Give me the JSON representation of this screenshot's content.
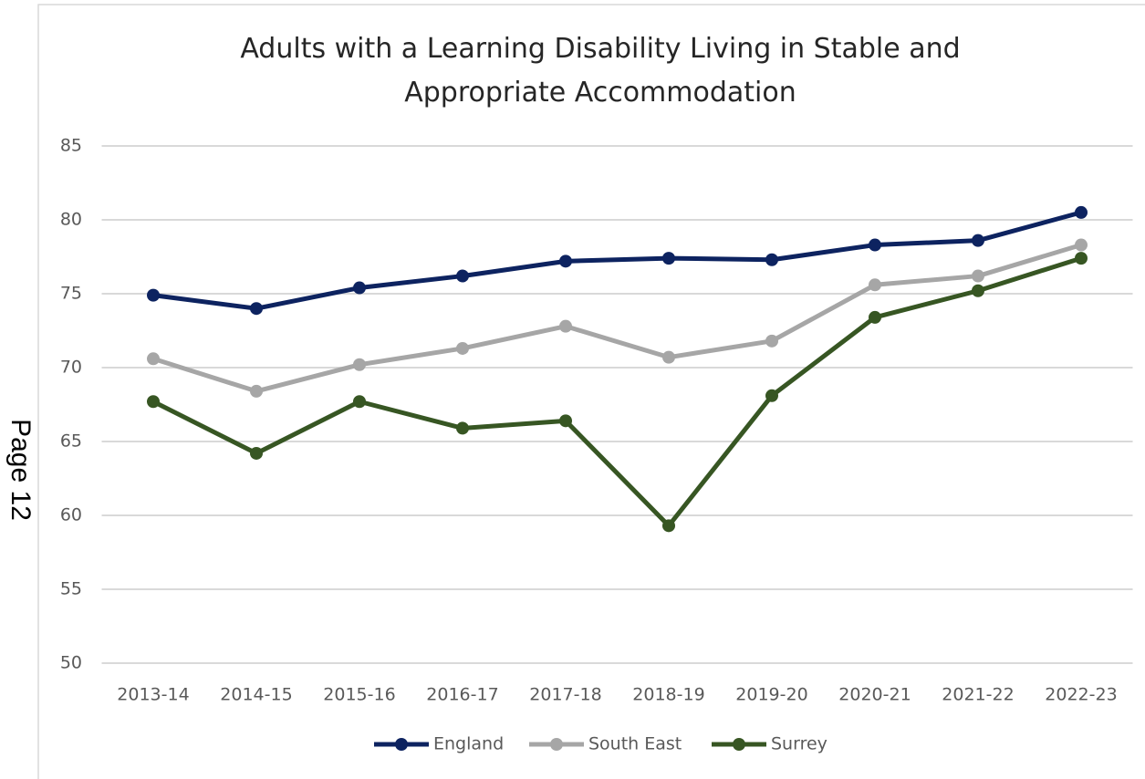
{
  "page_label": "Page 12",
  "chart_data": {
    "type": "line",
    "title": "Adults with a Learning Disability Living in Stable and Appropriate Accommodation",
    "categories": [
      "2013-14",
      "2014-15",
      "2015-16",
      "2016-17",
      "2017-18",
      "2018-19",
      "2019-20",
      "2020-21",
      "2021-22",
      "2022-23"
    ],
    "series": [
      {
        "name": "England",
        "color": "#0d2360",
        "values": [
          74.9,
          74.0,
          75.4,
          76.2,
          77.2,
          77.4,
          77.3,
          78.3,
          78.6,
          80.5
        ]
      },
      {
        "name": "South East",
        "color": "#a6a6a6",
        "values": [
          70.6,
          68.4,
          70.2,
          71.3,
          72.8,
          70.7,
          71.8,
          75.6,
          76.2,
          78.3
        ]
      },
      {
        "name": "Surrey",
        "color": "#375623",
        "values": [
          67.7,
          64.2,
          67.7,
          65.9,
          66.4,
          59.3,
          68.1,
          73.4,
          75.2,
          77.4
        ]
      }
    ],
    "ylim": [
      50,
      85
    ],
    "yticks": [
      50,
      55,
      60,
      65,
      70,
      75,
      80,
      85
    ],
    "grid": true,
    "legend": "bottom"
  }
}
